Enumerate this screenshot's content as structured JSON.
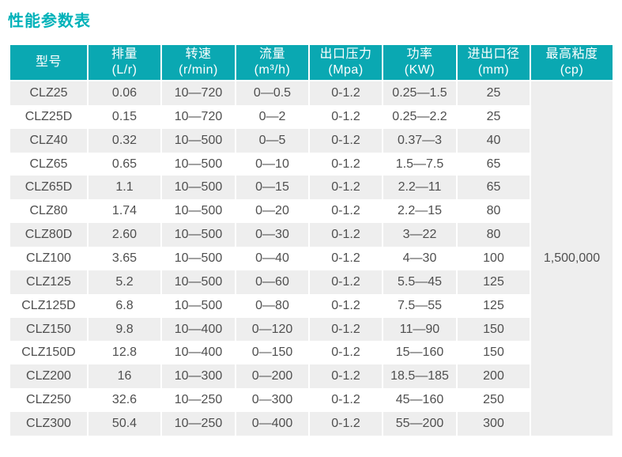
{
  "page": {
    "title": "性能参数表"
  },
  "colors": {
    "header_teal": "#0aa8b2",
    "title_teal": "#00b2b9",
    "row_alt_gray": "#eeeeee",
    "body_text": "#4f4f4f",
    "header_text": "#ffffff"
  },
  "table": {
    "columns": [
      {
        "name": "型号",
        "unit": ""
      },
      {
        "name": "排量",
        "unit": "(L/r)"
      },
      {
        "name": "转速",
        "unit": "(r/min)"
      },
      {
        "name": "流量",
        "unit": "(m³/h)"
      },
      {
        "name": "出口压力",
        "unit": "(Mpa)"
      },
      {
        "name": "功率",
        "unit": "(KW)"
      },
      {
        "name": "进出口径",
        "unit": "(mm)"
      },
      {
        "name": "最高粘度",
        "unit": "(cp)"
      }
    ],
    "rows": [
      [
        "CLZ25",
        "0.06",
        "10—720",
        "0—0.5",
        "0-1.2",
        "0.25—1.5",
        "25"
      ],
      [
        "CLZ25D",
        "0.15",
        "10—720",
        "0—2",
        "0-1.2",
        "0.25—2.2",
        "25"
      ],
      [
        "CLZ40",
        "0.32",
        "10—500",
        "0—5",
        "0-1.2",
        "0.37—3",
        "40"
      ],
      [
        "CLZ65",
        "0.65",
        "10—500",
        "0—10",
        "0-1.2",
        "1.5—7.5",
        "65"
      ],
      [
        "CLZ65D",
        "1.1",
        "10—500",
        "0—15",
        "0-1.2",
        "2.2—11",
        "65"
      ],
      [
        "CLZ80",
        "1.74",
        "10—500",
        "0—20",
        "0-1.2",
        "2.2—15",
        "80"
      ],
      [
        "CLZ80D",
        "2.60",
        "10—500",
        "0—30",
        "0-1.2",
        "3—22",
        "80"
      ],
      [
        "CLZ100",
        "3.65",
        "10—500",
        "0—40",
        "0-1.2",
        "4—30",
        "100"
      ],
      [
        "CLZ125",
        "5.2",
        "10—500",
        "0—60",
        "0-1.2",
        "5.5—45",
        "125"
      ],
      [
        "CLZ125D",
        "6.8",
        "10—500",
        "0—80",
        "0-1.2",
        "7.5—55",
        "125"
      ],
      [
        "CLZ150",
        "9.8",
        "10—400",
        "0—120",
        "0-1.2",
        "11—90",
        "150"
      ],
      [
        "CLZ150D",
        "12.8",
        "10—400",
        "0—150",
        "0-1.2",
        "15—160",
        "150"
      ],
      [
        "CLZ200",
        "16",
        "10—300",
        "0—200",
        "0-1.2",
        "18.5—185",
        "200"
      ],
      [
        "CLZ250",
        "32.6",
        "10—250",
        "0—300",
        "0-1.2",
        "45—160",
        "250"
      ],
      [
        "CLZ300",
        "50.4",
        "10—250",
        "0—400",
        "0-1.2",
        "55—200",
        "300"
      ]
    ],
    "merged_max_viscosity": "1,500,000"
  }
}
